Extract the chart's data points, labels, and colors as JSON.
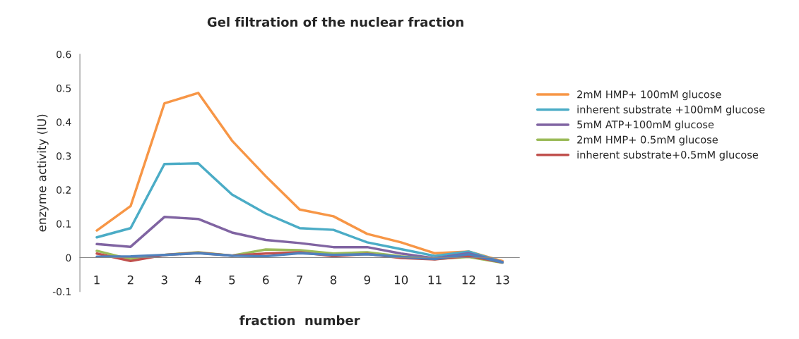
{
  "chart_data": {
    "type": "line",
    "title": "Gel filtration of the nuclear fraction",
    "xlabel": "fraction  number",
    "ylabel": "enzyme activity (IU)",
    "categories": [
      "1",
      "2",
      "3",
      "4",
      "5",
      "6",
      "7",
      "8",
      "9",
      "10",
      "11",
      "12",
      "13"
    ],
    "ylim": [
      -0.1,
      0.6
    ],
    "yticks": [
      -0.1,
      0,
      0.1,
      0.2,
      0.3,
      0.4,
      0.5,
      0.6
    ],
    "grid": false,
    "legend": "right",
    "marker": "none",
    "line_style": "solid",
    "series": [
      {
        "name": "2mM HMP+ 100mM glucose",
        "color": "#f79646",
        "values": [
          0.08,
          0.152,
          0.455,
          0.486,
          0.345,
          0.24,
          0.142,
          0.122,
          0.07,
          0.045,
          0.013,
          0.018,
          -0.01
        ]
      },
      {
        "name": "inherent substrate +100mM glucose",
        "color": "#4bacc6",
        "values": [
          0.06,
          0.087,
          0.276,
          0.278,
          0.186,
          0.13,
          0.087,
          0.082,
          0.045,
          0.025,
          0.005,
          0.018,
          -0.013
        ]
      },
      {
        "name": "5mM ATP+100mM glucose",
        "color": "#8064a2",
        "values": [
          0.04,
          0.032,
          0.12,
          0.114,
          0.074,
          0.052,
          0.043,
          0.031,
          0.031,
          0.012,
          -0.002,
          0.013,
          -0.013
        ]
      },
      {
        "name": "2mM HMP+ 0.5mM glucose",
        "color": "#9bbb59",
        "values": [
          0.02,
          -0.005,
          0.008,
          0.016,
          0.006,
          0.024,
          0.022,
          0.012,
          0.016,
          0.004,
          -0.004,
          0.002,
          -0.015
        ]
      },
      {
        "name": "inherent substrate+0.5mM glucose",
        "color": "#c0504d",
        "values": [
          0.012,
          -0.01,
          0.008,
          0.014,
          0.006,
          0.012,
          0.016,
          0.004,
          0.011,
          -0.001,
          -0.005,
          0.005,
          -0.014
        ]
      },
      {
        "color": "#4f81bd",
        "values": [
          0.003,
          0.004,
          0.008,
          0.013,
          0.006,
          0.004,
          0.013,
          0.008,
          0.01,
          0.002,
          -0.004,
          0.01,
          -0.014
        ]
      }
    ]
  }
}
